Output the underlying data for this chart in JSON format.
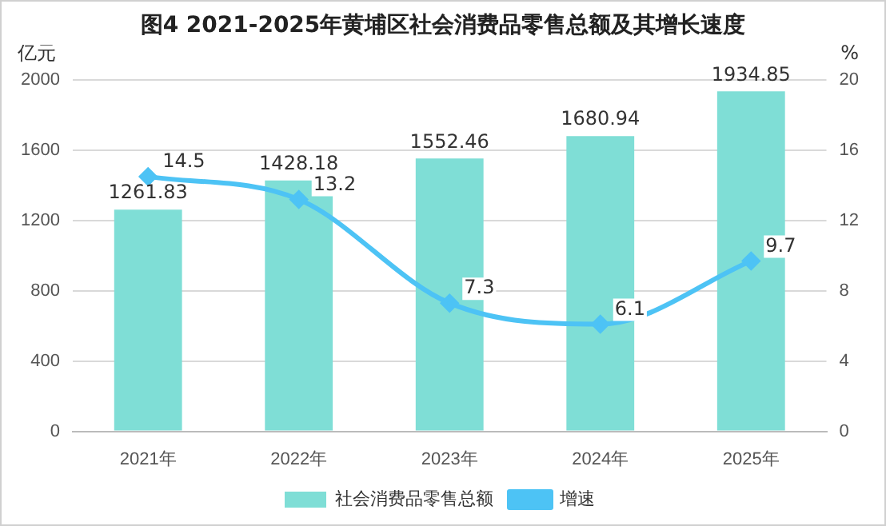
{
  "chart_data": {
    "type": "bar",
    "title": "图4  2021-2025年黄埔区社会消费品零售总额及其增长速度",
    "ylabel": "亿元",
    "y2label": "%",
    "categories": [
      "2021年",
      "2022年",
      "2023年",
      "2024年",
      "2025年"
    ],
    "series": [
      {
        "name": "社会消费品零售总额",
        "type": "bar",
        "color": "#7fded6",
        "values": [
          1261.83,
          1428.18,
          1552.46,
          1680.94,
          1934.85
        ]
      },
      {
        "name": "增速",
        "type": "line",
        "axis": "y2",
        "color": "#4dc3f5",
        "marker": "diamond",
        "values": [
          14.5,
          13.2,
          7.3,
          6.1,
          9.7
        ]
      }
    ],
    "ylim": [
      0,
      2000
    ],
    "yticks": [
      0,
      400,
      800,
      1200,
      1600,
      2000
    ],
    "y2lim": [
      0,
      20
    ],
    "y2ticks": [
      0,
      4,
      8,
      12,
      16,
      20
    ],
    "grid": "y",
    "legend": "bottom",
    "data_labels": true
  }
}
